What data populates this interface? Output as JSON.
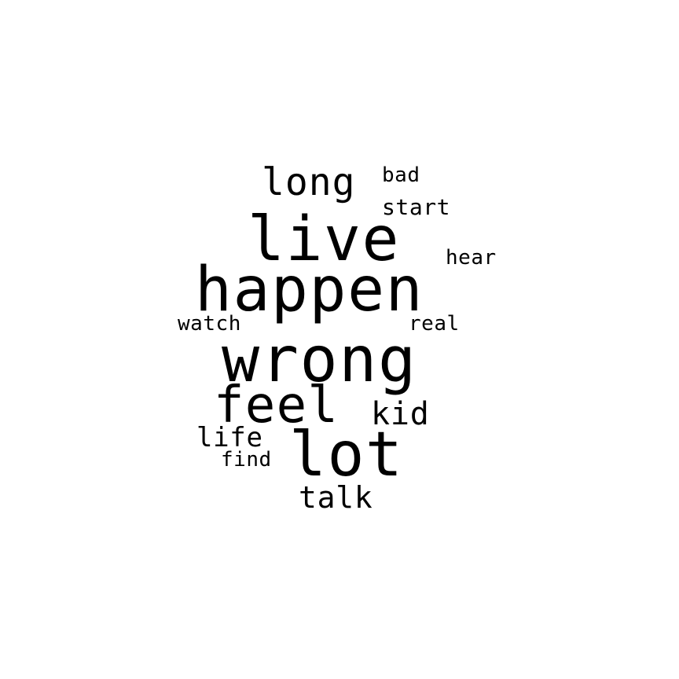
{
  "word_cloud": {
    "text_color": "#000000",
    "background_color": "#ffffff",
    "words": [
      {
        "text": "wrong"
      },
      {
        "text": "happen"
      },
      {
        "text": "live"
      },
      {
        "text": "lot"
      },
      {
        "text": "feel"
      },
      {
        "text": "long"
      },
      {
        "text": "kid"
      },
      {
        "text": "talk"
      },
      {
        "text": "start"
      },
      {
        "text": "bad"
      },
      {
        "text": "hear"
      },
      {
        "text": "watch"
      },
      {
        "text": "real"
      },
      {
        "text": "life"
      },
      {
        "text": "find"
      }
    ]
  }
}
